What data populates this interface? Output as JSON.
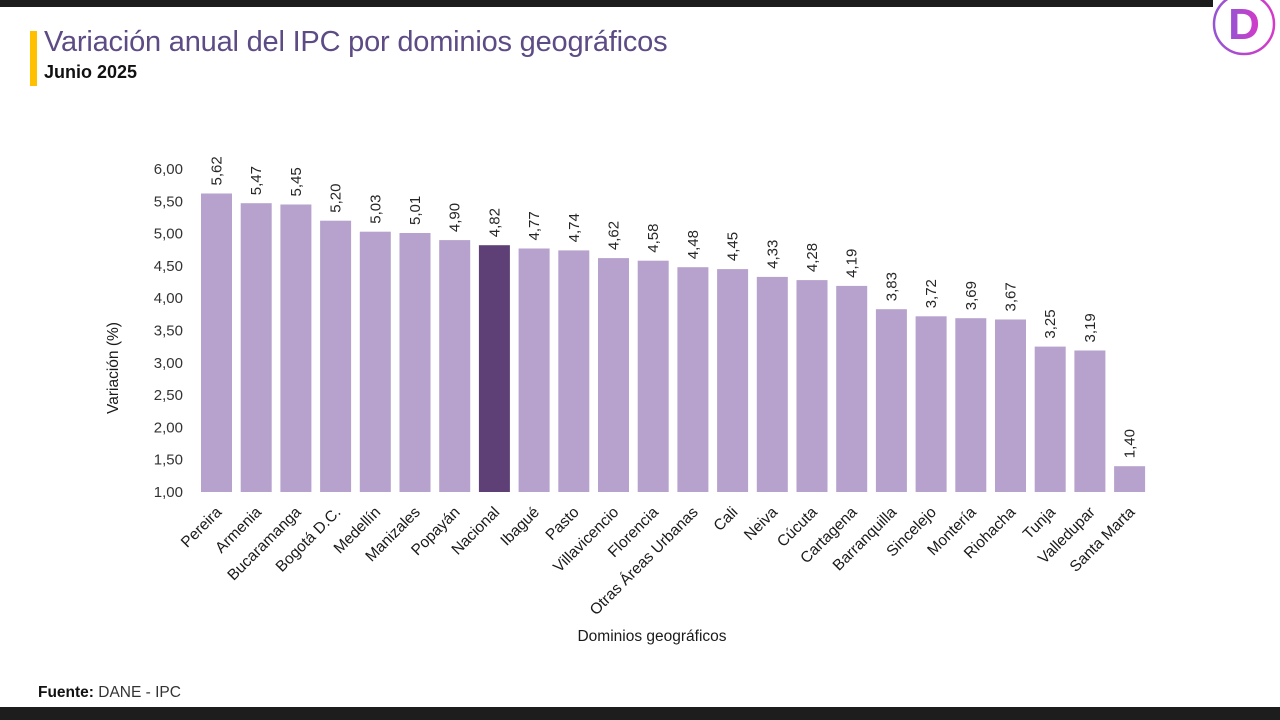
{
  "header": {
    "title": "Variación anual del IPC por dominios geográficos",
    "subtitle": "Junio 2025"
  },
  "logo": {
    "letter": "D"
  },
  "colors": {
    "accent_yellow": "#FFC000",
    "title_purple": "#5C4B85",
    "bar": "#B6A2CC",
    "bar_highlight": "#5E4077",
    "strip_black": "#1D1D1D",
    "logo_gradient_start": "#9455D4",
    "logo_gradient_end": "#D639C8"
  },
  "chart_data": {
    "type": "bar",
    "title": "Variación anual del IPC por dominios geográficos",
    "subtitle": "Junio 2025",
    "xlabel": "Dominios geográficos",
    "ylabel": "Variación (%)",
    "ylim": [
      1.0,
      6.0
    ],
    "ytick_step": 0.5,
    "decimal_separator": ",",
    "grid": false,
    "legend": "none",
    "categories": [
      "Pereira",
      "Armenia",
      "Bucaramanga",
      "Bogotá D.C.",
      "Medellín",
      "Manizales",
      "Popayán",
      "Nacional",
      "Ibagué",
      "Pasto",
      "Villavicencio",
      "Florencia",
      "Otras Áreas Urbanas",
      "Cali",
      "Neiva",
      "Cúcuta",
      "Cartagena",
      "Barranquilla",
      "Sincelejo",
      "Montería",
      "Riohacha",
      "Tunja",
      "Valledupar",
      "Santa Marta"
    ],
    "values": [
      5.62,
      5.47,
      5.45,
      5.2,
      5.03,
      5.01,
      4.9,
      4.82,
      4.77,
      4.74,
      4.62,
      4.58,
      4.48,
      4.45,
      4.33,
      4.28,
      4.19,
      3.83,
      3.72,
      3.69,
      3.67,
      3.25,
      3.19,
      1.4
    ],
    "value_labels": [
      "5,62",
      "5,47",
      "5,45",
      "5,20",
      "5,03",
      "5,01",
      "4,90",
      "4,82",
      "4,77",
      "4,74",
      "4,62",
      "4,58",
      "4,48",
      "4,45",
      "4,33",
      "4,28",
      "4,19",
      "3,83",
      "3,72",
      "3,69",
      "3,67",
      "3,25",
      "3,19",
      "1,40"
    ],
    "highlight_category": "Nacional"
  },
  "footer": {
    "source_label": "Fuente:",
    "source_value": " DANE - IPC"
  }
}
